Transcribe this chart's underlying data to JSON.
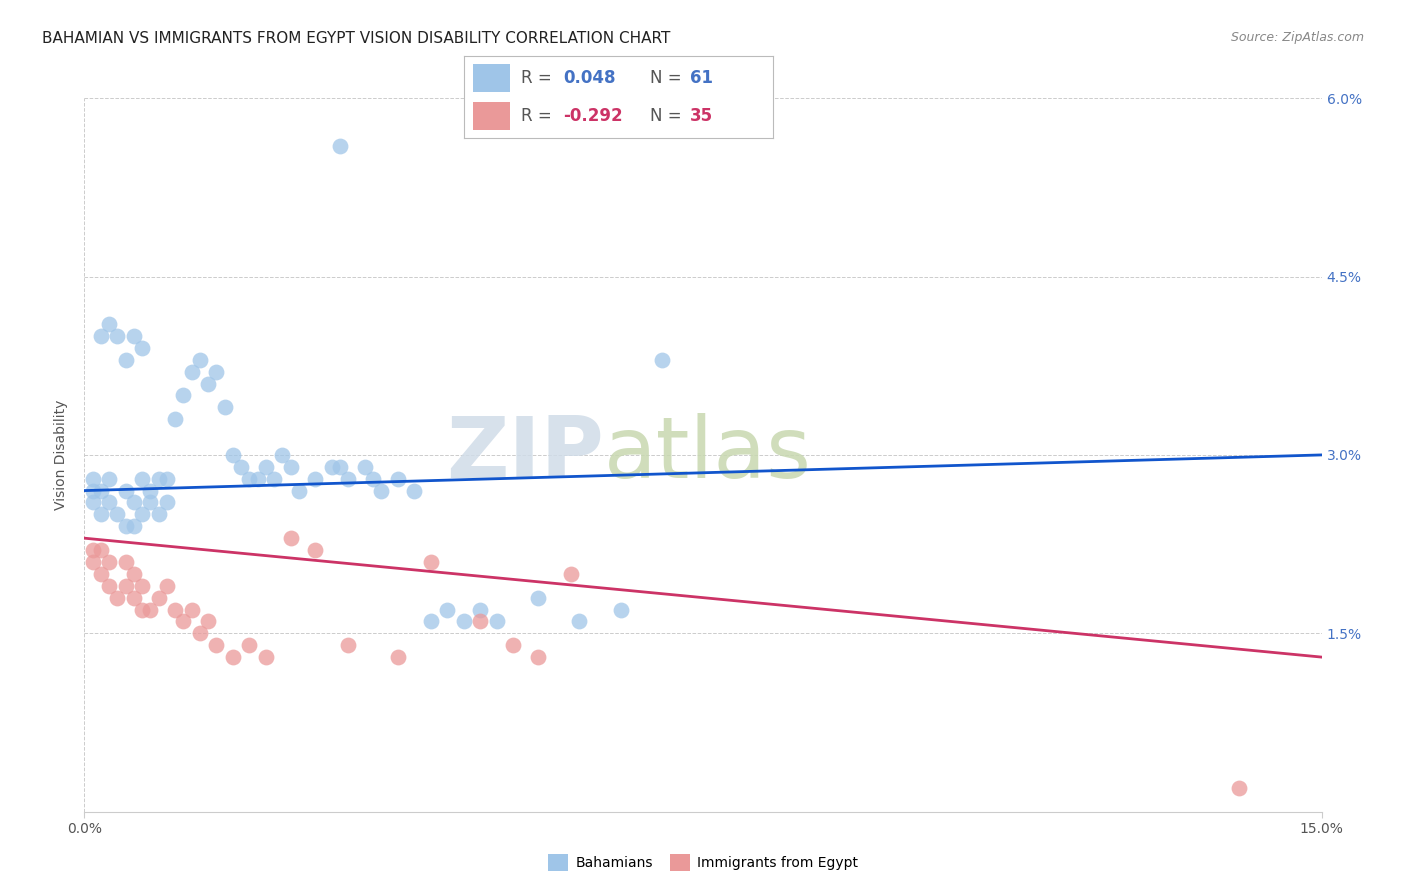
{
  "title": "BAHAMIAN VS IMMIGRANTS FROM EGYPT VISION DISABILITY CORRELATION CHART",
  "source": "Source: ZipAtlas.com",
  "ylabel": "Vision Disability",
  "xlim": [
    0.0,
    0.15
  ],
  "ylim": [
    0.0,
    0.06
  ],
  "xticks": [
    0.0,
    0.15
  ],
  "xticklabels": [
    "0.0%",
    "15.0%"
  ],
  "yticks_right": [
    0.0,
    0.015,
    0.03,
    0.045,
    0.06
  ],
  "yticklabels_right": [
    "",
    "1.5%",
    "3.0%",
    "4.5%",
    "6.0%"
  ],
  "legend_r1": "R=  0.048",
  "legend_n1": "N =  61",
  "legend_r2": "R= -0.292",
  "legend_n2": "N =  35",
  "blue_scatter_color": "#9fc5e8",
  "pink_scatter_color": "#ea9999",
  "blue_line_color": "#1155cc",
  "pink_line_color": "#cc3366",
  "grid_color": "#cccccc",
  "watermark_zip": "ZIP",
  "watermark_atlas": "atlas",
  "title_fontsize": 11,
  "axis_label_fontsize": 10,
  "tick_fontsize": 10,
  "legend_fontsize": 12,
  "bahamian_x": [
    0.001,
    0.001,
    0.001,
    0.002,
    0.002,
    0.003,
    0.003,
    0.004,
    0.005,
    0.005,
    0.006,
    0.006,
    0.007,
    0.007,
    0.008,
    0.008,
    0.009,
    0.009,
    0.01,
    0.01,
    0.011,
    0.012,
    0.013,
    0.014,
    0.015,
    0.016,
    0.017,
    0.018,
    0.019,
    0.02,
    0.021,
    0.022,
    0.023,
    0.024,
    0.025,
    0.026,
    0.028,
    0.03,
    0.031,
    0.032,
    0.034,
    0.035,
    0.036,
    0.038,
    0.04,
    0.042,
    0.044,
    0.046,
    0.048,
    0.05,
    0.055,
    0.06,
    0.065,
    0.07,
    0.002,
    0.003,
    0.004,
    0.005,
    0.006,
    0.007,
    0.031
  ],
  "bahamian_y": [
    0.027,
    0.028,
    0.026,
    0.027,
    0.025,
    0.028,
    0.026,
    0.025,
    0.027,
    0.024,
    0.026,
    0.024,
    0.028,
    0.025,
    0.027,
    0.026,
    0.028,
    0.025,
    0.028,
    0.026,
    0.033,
    0.035,
    0.037,
    0.038,
    0.036,
    0.037,
    0.034,
    0.03,
    0.029,
    0.028,
    0.028,
    0.029,
    0.028,
    0.03,
    0.029,
    0.027,
    0.028,
    0.029,
    0.029,
    0.028,
    0.029,
    0.028,
    0.027,
    0.028,
    0.027,
    0.016,
    0.017,
    0.016,
    0.017,
    0.016,
    0.018,
    0.016,
    0.017,
    0.038,
    0.04,
    0.041,
    0.04,
    0.038,
    0.04,
    0.039,
    0.056
  ],
  "egypt_x": [
    0.001,
    0.001,
    0.002,
    0.002,
    0.003,
    0.003,
    0.004,
    0.005,
    0.005,
    0.006,
    0.006,
    0.007,
    0.007,
    0.008,
    0.009,
    0.01,
    0.011,
    0.012,
    0.013,
    0.014,
    0.015,
    0.016,
    0.018,
    0.02,
    0.022,
    0.025,
    0.028,
    0.032,
    0.038,
    0.042,
    0.048,
    0.052,
    0.055,
    0.059,
    0.14
  ],
  "egypt_y": [
    0.022,
    0.021,
    0.022,
    0.02,
    0.021,
    0.019,
    0.018,
    0.021,
    0.019,
    0.02,
    0.018,
    0.019,
    0.017,
    0.017,
    0.018,
    0.019,
    0.017,
    0.016,
    0.017,
    0.015,
    0.016,
    0.014,
    0.013,
    0.014,
    0.013,
    0.023,
    0.022,
    0.014,
    0.013,
    0.021,
    0.016,
    0.014,
    0.013,
    0.02,
    0.002
  ]
}
